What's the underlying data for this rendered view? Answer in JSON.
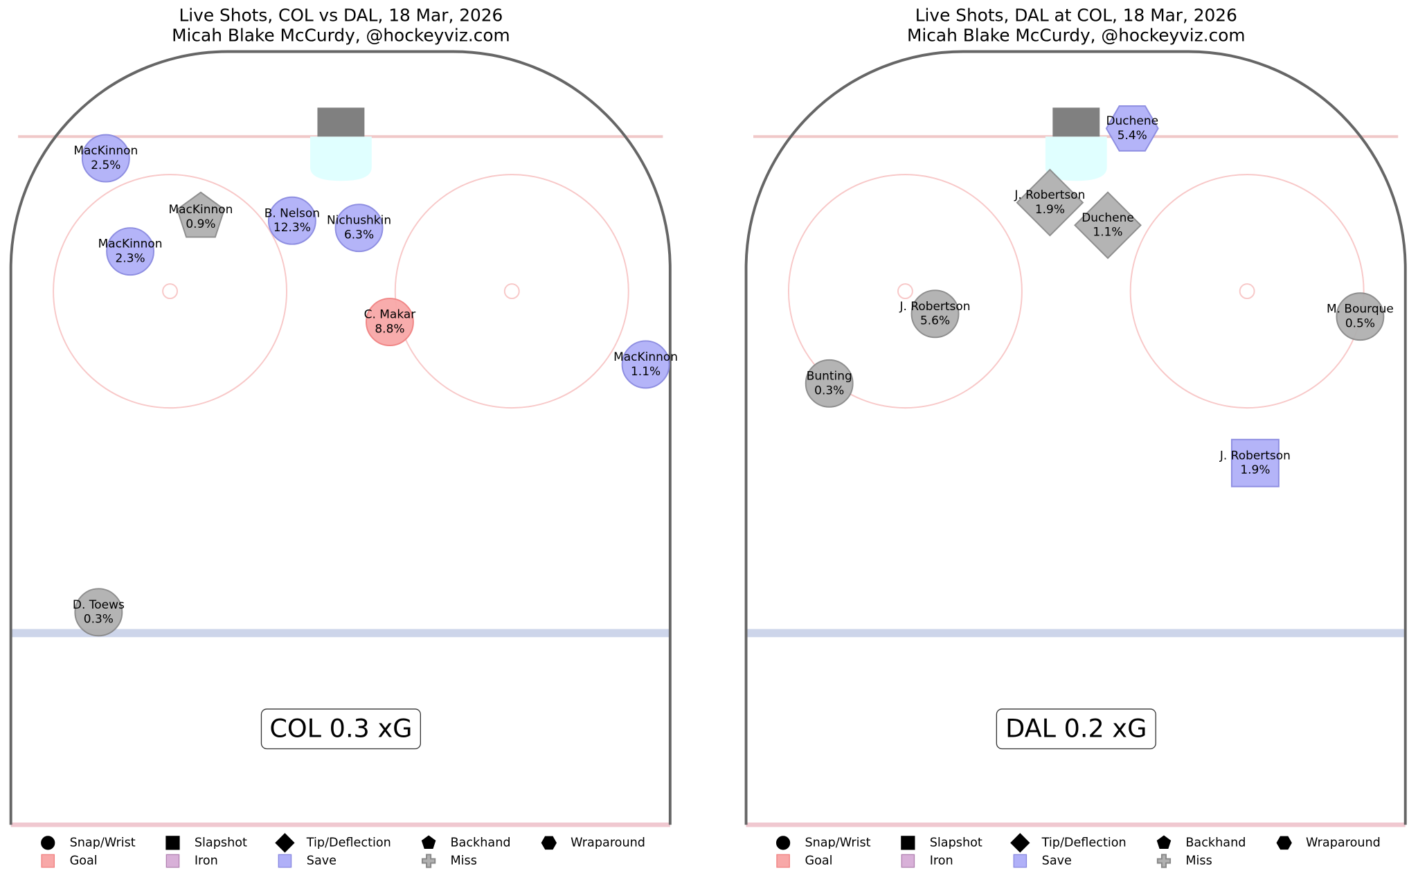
{
  "panels": [
    {
      "title": "Live Shots, COL vs DAL, 18 Mar, 2026",
      "subtitle": "Micah Blake McCurdy, @hockeyviz.com",
      "total": "COL 0.3 xG",
      "shots": [
        {
          "player": "MacKinnon",
          "xg": "2.5%",
          "shot_type": "Snap/Wrist",
          "result": "Save"
        },
        {
          "player": "MacKinnon",
          "xg": "0.9%",
          "shot_type": "Backhand",
          "result": "Miss"
        },
        {
          "player": "MacKinnon",
          "xg": "2.3%",
          "shot_type": "Snap/Wrist",
          "result": "Save"
        },
        {
          "player": "B. Nelson",
          "xg": "12.3%",
          "shot_type": "Snap/Wrist",
          "result": "Save"
        },
        {
          "player": "Nichushkin",
          "xg": "6.3%",
          "shot_type": "Snap/Wrist",
          "result": "Save"
        },
        {
          "player": "C. Makar",
          "xg": "8.8%",
          "shot_type": "Snap/Wrist",
          "result": "Goal"
        },
        {
          "player": "MacKinnon",
          "xg": "1.1%",
          "shot_type": "Snap/Wrist",
          "result": "Save"
        },
        {
          "player": "D. Toews",
          "xg": "0.3%",
          "shot_type": "Snap/Wrist",
          "result": "Miss"
        }
      ]
    },
    {
      "title": "Live Shots, DAL at COL, 18 Mar, 2026",
      "subtitle": "Micah Blake McCurdy, @hockeyviz.com",
      "total": "DAL 0.2 xG",
      "shots": [
        {
          "player": "Duchene",
          "xg": "5.4%",
          "shot_type": "Wraparound",
          "result": "Save"
        },
        {
          "player": "J. Robertson",
          "xg": "1.9%",
          "shot_type": "Tip/Deflection",
          "result": "Miss"
        },
        {
          "player": "Duchene",
          "xg": "1.1%",
          "shot_type": "Tip/Deflection",
          "result": "Miss"
        },
        {
          "player": "J. Robertson",
          "xg": "5.6%",
          "shot_type": "Snap/Wrist",
          "result": "Miss"
        },
        {
          "player": "M. Bourque",
          "xg": "0.5%",
          "shot_type": "Snap/Wrist",
          "result": "Miss"
        },
        {
          "player": "Bunting",
          "xg": "0.3%",
          "shot_type": "Snap/Wrist",
          "result": "Miss"
        },
        {
          "player": "J. Robertson",
          "xg": "1.9%",
          "shot_type": "Slapshot",
          "result": "Save"
        }
      ]
    }
  ],
  "legend": {
    "shot_types": [
      "Snap/Wrist",
      "Slapshot",
      "Tip/Deflection",
      "Backhand",
      "Wraparound"
    ],
    "results": [
      {
        "name": "Goal",
        "color": "#f8a8a8"
      },
      {
        "name": "Iron",
        "color": "#d8b0d8"
      },
      {
        "name": "Save",
        "color": "#b0b0f8"
      },
      {
        "name": "Miss",
        "color": "#b0b0b0"
      }
    ]
  }
}
